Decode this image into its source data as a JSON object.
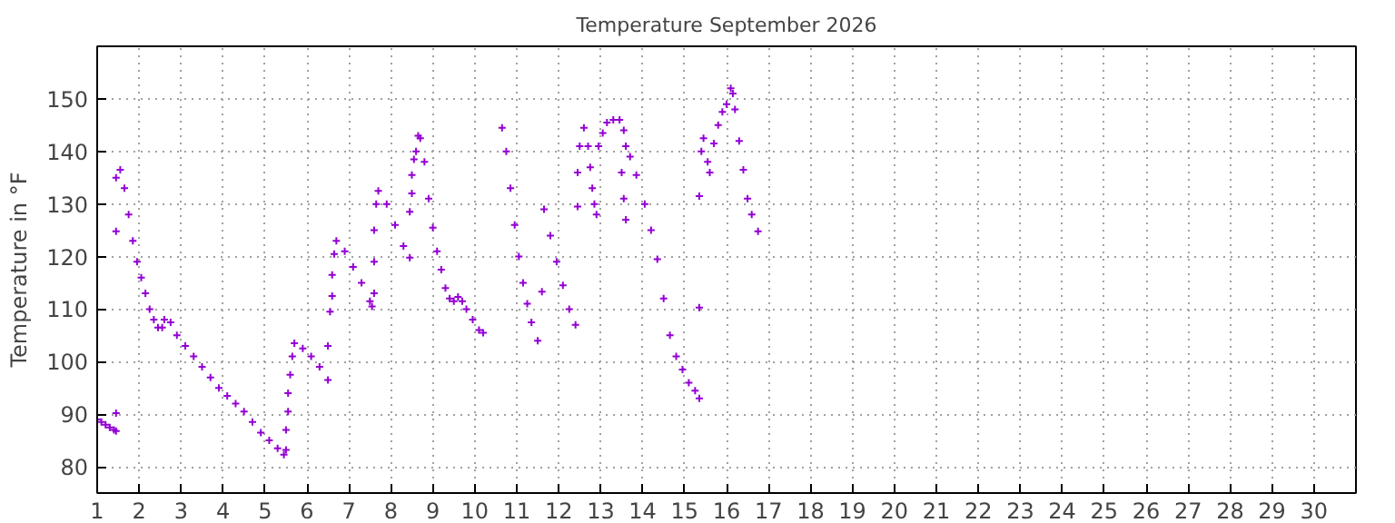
{
  "chart_data": {
    "type": "scatter",
    "title": "Temperature September 2026",
    "ylabel": "Temperature in °F",
    "xlim": [
      1,
      31
    ],
    "ylim": [
      75,
      160
    ],
    "xticks": [
      1,
      2,
      3,
      4,
      5,
      6,
      7,
      8,
      9,
      10,
      11,
      12,
      13,
      14,
      15,
      16,
      17,
      18,
      19,
      20,
      21,
      22,
      23,
      24,
      25,
      26,
      27,
      28,
      29,
      30
    ],
    "yticks": [
      80,
      90,
      100,
      110,
      120,
      130,
      140,
      150
    ],
    "grid": true,
    "marker": "cross",
    "series": [
      {
        "color": "#9400d3",
        "x": [
          1.0,
          1.1,
          1.2,
          1.3,
          1.4,
          1.45,
          1.45,
          1.45,
          1.45,
          1.55,
          1.65,
          1.75,
          1.85,
          1.95,
          2.05,
          2.15,
          2.25,
          2.35,
          2.45,
          2.55,
          2.6,
          2.75,
          2.9,
          3.1,
          3.3,
          3.5,
          3.7,
          3.9,
          4.1,
          4.3,
          4.5,
          4.7,
          4.9,
          5.1,
          5.3,
          5.45,
          5.5,
          5.5,
          5.55,
          5.55,
          5.6,
          5.65,
          5.7,
          5.9,
          6.1,
          6.3,
          6.5,
          6.5,
          6.55,
          6.6,
          6.6,
          6.65,
          6.7,
          6.9,
          7.1,
          7.3,
          7.5,
          7.55,
          7.6,
          7.6,
          7.6,
          7.65,
          7.7,
          7.9,
          8.1,
          8.3,
          8.45,
          8.45,
          8.5,
          8.5,
          8.55,
          8.6,
          8.65,
          8.7,
          8.8,
          8.9,
          9.0,
          9.1,
          9.2,
          9.3,
          9.4,
          9.5,
          9.6,
          9.7,
          9.8,
          9.95,
          10.1,
          10.2,
          10.65,
          10.75,
          10.85,
          10.95,
          11.05,
          11.15,
          11.25,
          11.35,
          11.5,
          11.6,
          11.65,
          11.8,
          11.95,
          12.1,
          12.25,
          12.4,
          12.45,
          12.45,
          12.5,
          12.6,
          12.7,
          12.75,
          12.8,
          12.85,
          12.9,
          12.95,
          13.05,
          13.15,
          13.3,
          13.45,
          13.55,
          13.6,
          13.5,
          13.55,
          13.6,
          13.7,
          13.85,
          14.05,
          14.2,
          14.35,
          14.5,
          14.65,
          14.8,
          14.95,
          15.1,
          15.25,
          15.35,
          15.35,
          15.35,
          15.4,
          15.45,
          15.55,
          15.6,
          15.7,
          15.8,
          15.9,
          16.0,
          16.1,
          16.15,
          16.2,
          16.3,
          16.4,
          16.5,
          16.6,
          16.75
        ],
        "values": [
          89,
          88.5,
          88,
          87.5,
          87,
          86.8,
          90.2,
          124.8,
          135,
          136.5,
          133,
          128,
          123,
          119,
          116,
          113,
          110,
          108,
          106.5,
          106.5,
          108,
          107.5,
          105,
          103,
          101,
          99,
          97,
          95,
          93.5,
          92,
          90.5,
          88.5,
          86.5,
          85,
          83.5,
          82.3,
          83.2,
          87,
          90.5,
          94,
          97.5,
          101,
          103.5,
          102.5,
          101,
          99,
          96.5,
          103,
          109.5,
          112.5,
          116.5,
          120.5,
          123,
          121,
          118,
          115,
          111.5,
          110.5,
          113,
          119,
          125,
          130,
          132.5,
          130,
          126,
          122,
          119.8,
          128.5,
          132,
          135.5,
          138.5,
          140,
          143,
          142.5,
          138,
          131,
          125.5,
          121,
          117.5,
          114,
          112,
          111.5,
          112.3,
          111.5,
          110,
          108,
          106,
          105.5,
          144.5,
          140,
          133,
          126,
          120,
          115,
          111,
          107.5,
          104,
          113.3,
          129,
          124,
          119,
          114.5,
          110,
          107,
          129.5,
          136,
          141,
          144.5,
          141,
          137,
          133,
          130,
          128,
          141,
          143.5,
          145.5,
          146,
          146,
          144,
          141,
          136,
          131,
          127,
          139,
          135.5,
          130,
          125,
          119.5,
          112,
          105,
          101,
          98.5,
          96,
          94.5,
          93,
          110.3,
          131.5,
          140,
          142.5,
          138,
          136,
          141.5,
          145,
          147.5,
          149,
          152,
          151,
          148,
          142,
          136.5,
          131,
          128,
          124.8
        ]
      }
    ]
  }
}
